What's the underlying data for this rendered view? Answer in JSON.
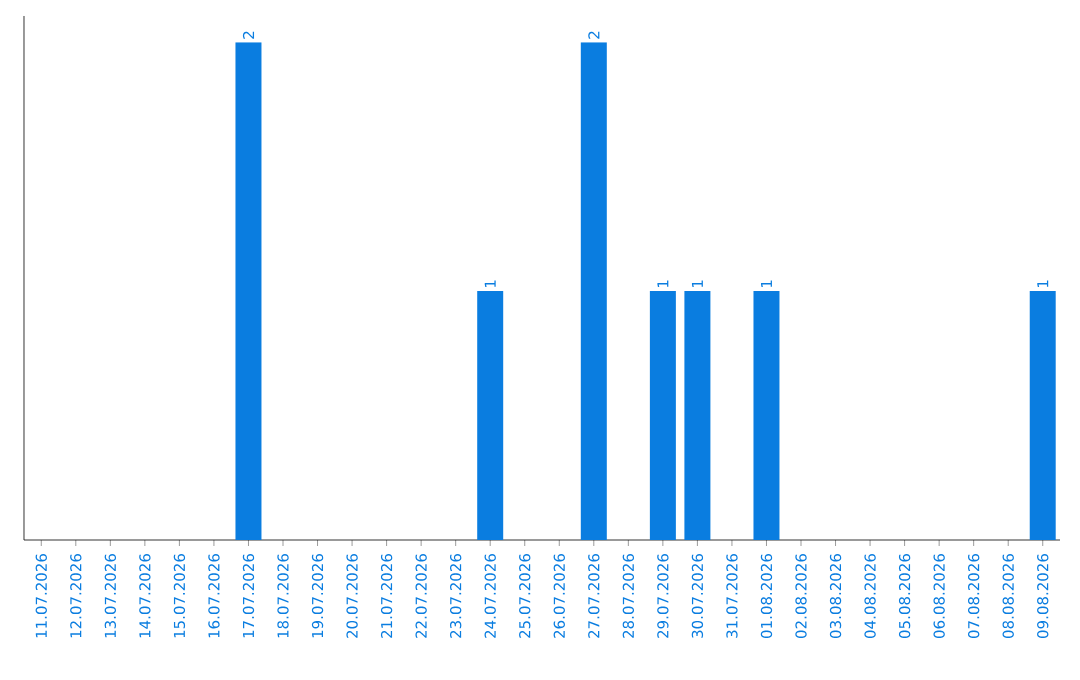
{
  "chart_data": {
    "type": "bar",
    "categories": [
      "11.07.2026",
      "12.07.2026",
      "13.07.2026",
      "14.07.2026",
      "15.07.2026",
      "16.07.2026",
      "17.07.2026",
      "18.07.2026",
      "19.07.2026",
      "20.07.2026",
      "21.07.2026",
      "22.07.2026",
      "23.07.2026",
      "24.07.2026",
      "25.07.2026",
      "26.07.2026",
      "27.07.2026",
      "28.07.2026",
      "29.07.2026",
      "30.07.2026",
      "31.07.2026",
      "01.08.2026",
      "02.08.2026",
      "03.08.2026",
      "04.08.2026",
      "05.08.2026",
      "06.08.2026",
      "07.08.2026",
      "08.08.2026",
      "09.08.2026"
    ],
    "values": [
      0,
      0,
      0,
      0,
      0,
      0,
      2,
      0,
      0,
      0,
      0,
      0,
      0,
      1,
      0,
      0,
      2,
      0,
      1,
      1,
      0,
      1,
      0,
      0,
      0,
      0,
      0,
      0,
      0,
      1
    ],
    "value_labels": [
      null,
      null,
      null,
      null,
      null,
      null,
      "2",
      null,
      null,
      null,
      null,
      null,
      null,
      "1",
      null,
      null,
      "2",
      null,
      "1",
      "1",
      null,
      "1",
      null,
      null,
      null,
      null,
      null,
      null,
      null,
      "1"
    ],
    "color": "#0a7de0"
  }
}
